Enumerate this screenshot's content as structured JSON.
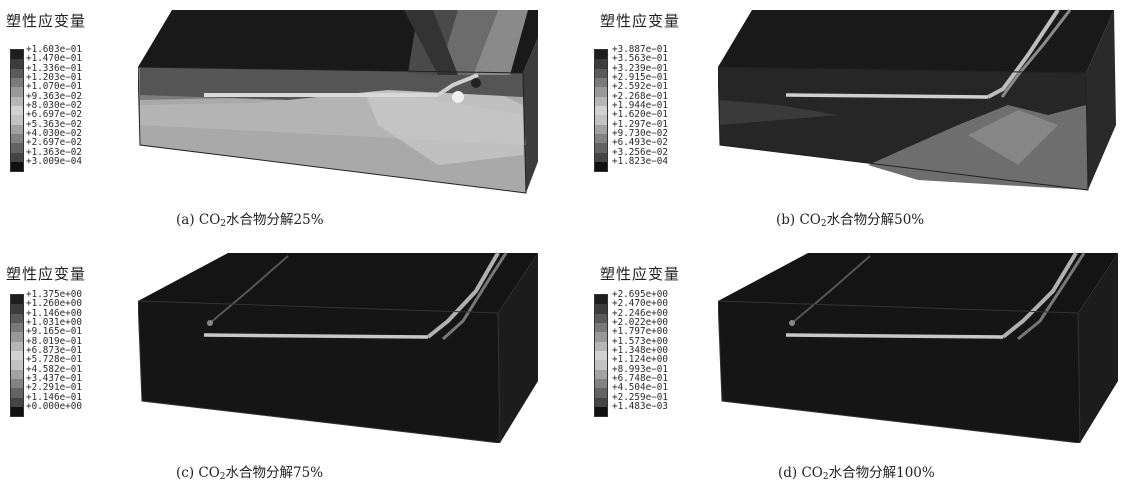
{
  "panels": [
    {
      "legend_title": "塑性应变量",
      "ticks": [
        "+1.603e−01",
        "+1.470e−01",
        "+1.336e−01",
        "+1.203e−01",
        "+1.070e−01",
        "+9.363e−02",
        "+8.030e−02",
        "+6.697e−02",
        "+5.363e−02",
        "+4.030e−02",
        "+2.697e−02",
        "+1.363e−02",
        "+3.009e−04"
      ],
      "caption_prefix": "(a) CO",
      "caption_sub": "2",
      "caption_suffix": "水合物分解25%"
    },
    {
      "legend_title": "塑性应变量",
      "ticks": [
        "+3.887e−01",
        "+3.563e−01",
        "+3.239e−01",
        "+2.915e−01",
        "+2.592e−01",
        "+2.268e−01",
        "+1.944e−01",
        "+1.620e−01",
        "+1.297e−01",
        "+9.730e−02",
        "+6.493e−02",
        "+3.256e−02",
        "+1.823e−04"
      ],
      "caption_prefix": "(b) CO",
      "caption_sub": "2",
      "caption_suffix": "水合物分解50%"
    },
    {
      "legend_title": "塑性应变量",
      "ticks": [
        "+1.375e+00",
        "+1.260e+00",
        "+1.146e+00",
        "+1.031e+00",
        "+9.165e−01",
        "+8.019e−01",
        "+6.873e−01",
        "+5.728e−01",
        "+4.582e−01",
        "+3.437e−01",
        "+2.291e−01",
        "+1.146e−01",
        "+0.000e+00"
      ],
      "caption_prefix": "(c) CO",
      "caption_sub": "2",
      "caption_suffix": "水合物分解75%"
    },
    {
      "legend_title": "塑性应变量",
      "ticks": [
        "+2.695e+00",
        "+2.470e+00",
        "+2.246e+00",
        "+2.022e+00",
        "+1.797e+00",
        "+1.573e+00",
        "+1.348e+00",
        "+1.124e+00",
        "+8.993e−01",
        "+6.748e−01",
        "+4.504e−01",
        "+2.259e−01",
        "+1.483e−03"
      ],
      "caption_prefix": "(d) CO",
      "caption_sub": "2",
      "caption_suffix": "水合物分解100%"
    }
  ],
  "colorbar_colors": [
    "#1e1e1e",
    "#3c3c3c",
    "#5a5a5a",
    "#7a7a7a",
    "#999999",
    "#b6b6b6",
    "#d2d2d2",
    "#c2c2c2",
    "#a2a2a2",
    "#828282",
    "#636363",
    "#444444",
    "#111111"
  ]
}
